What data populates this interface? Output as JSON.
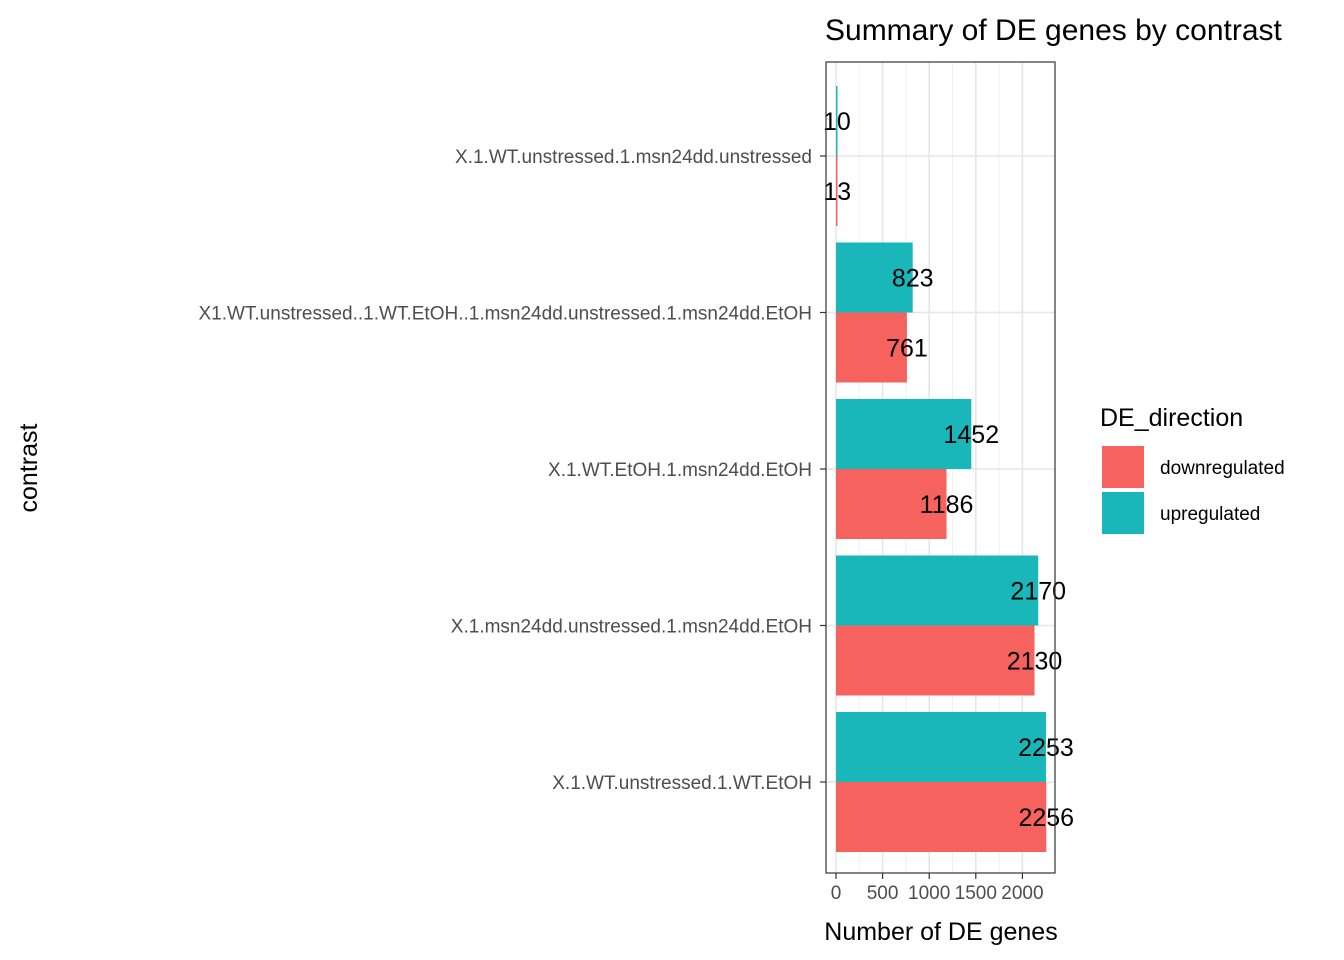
{
  "chart_data": {
    "type": "bar",
    "orientation": "horizontal",
    "title": "Summary of DE genes by contrast",
    "xlabel": "Number of DE genes",
    "ylabel": "contrast",
    "xlim": [
      0,
      2350
    ],
    "x_ticks": [
      0,
      500,
      1000,
      1500,
      2000
    ],
    "x_tick_labels": [
      "0",
      "500",
      "1000",
      "1500",
      "2000"
    ],
    "categories": [
      "X.1.WT.unstressed.1.msn24dd.unstressed",
      "X1.WT.unstressed..1.WT.EtOH..1.msn24dd.unstressed.1.msn24dd.EtOH",
      "X.1.WT.EtOH.1.msn24dd.EtOH",
      "X.1.msn24dd.unstressed.1.msn24dd.EtOH",
      "X.1.WT.unstressed.1.WT.EtOH"
    ],
    "series": [
      {
        "name": "upregulated",
        "color": "#19b7b9",
        "values": [
          10,
          823,
          1452,
          2170,
          2253
        ]
      },
      {
        "name": "downregulated",
        "color": "#f6625e",
        "values": [
          13,
          761,
          1186,
          2130,
          2256
        ]
      }
    ],
    "legend": {
      "title": "DE_direction",
      "position": "right",
      "entries": [
        {
          "label": "downregulated",
          "color": "#f6625e"
        },
        {
          "label": "upregulated",
          "color": "#19b7b9"
        }
      ]
    },
    "grid": true,
    "data_labels": true
  }
}
